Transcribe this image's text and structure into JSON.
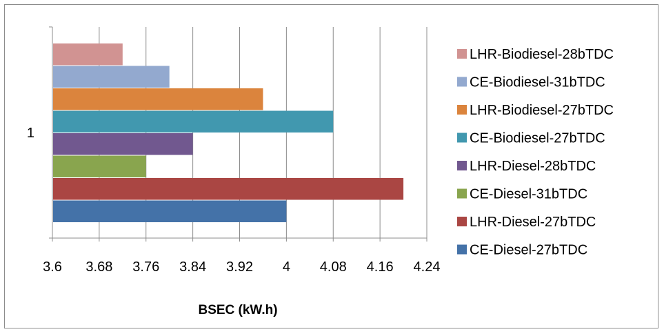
{
  "chart_data": {
    "type": "bar",
    "orientation": "horizontal",
    "categories": [
      "1"
    ],
    "xlabel": "BSEC (kW.h)",
    "ylabel": "",
    "xlim": [
      3.6,
      4.24
    ],
    "xticks": [
      "3.6",
      "3.68",
      "3.76",
      "3.84",
      "3.92",
      "4",
      "4.08",
      "4.16",
      "4.24"
    ],
    "grid": "vertical",
    "legend_position": "right",
    "series": [
      {
        "name": "CE-Diesel-27bTDC",
        "values": [
          4.0
        ],
        "color": "#4472a8"
      },
      {
        "name": "LHR-Diesel-27bTDC",
        "values": [
          4.2
        ],
        "color": "#aa4643"
      },
      {
        "name": "CE-Diesel-31bTDC",
        "values": [
          3.76
        ],
        "color": "#89a54e"
      },
      {
        "name": "LHR-Diesel-28bTDC",
        "values": [
          3.84
        ],
        "color": "#71588f"
      },
      {
        "name": "CE-Biodiesel-27bTDC",
        "values": [
          4.08
        ],
        "color": "#4198af"
      },
      {
        "name": "LHR-Biodiesel-27bTDC",
        "values": [
          3.96
        ],
        "color": "#db843d"
      },
      {
        "name": "CE-Biodiesel-31bTDC",
        "values": [
          3.8
        ],
        "color": "#93a9cf"
      },
      {
        "name": "LHR-Biodiesel-28bTDC",
        "values": [
          3.72
        ],
        "color": "#d19392"
      }
    ]
  }
}
